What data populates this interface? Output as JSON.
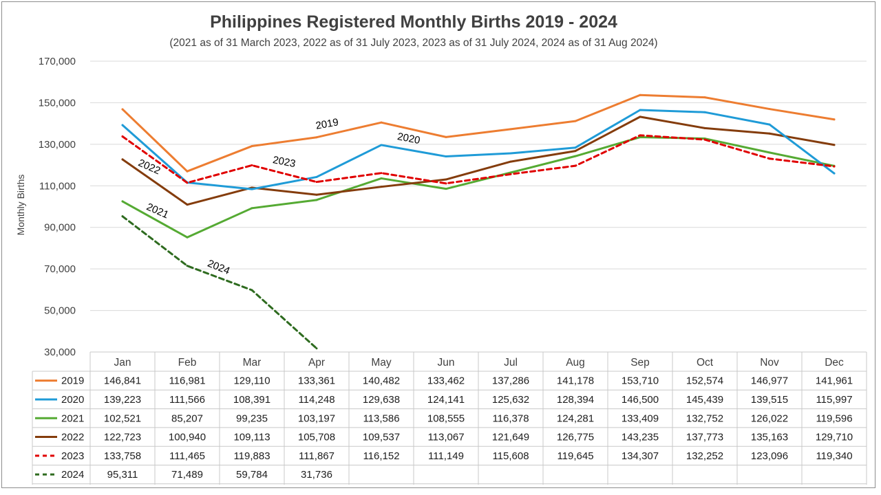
{
  "chart_data": {
    "type": "line",
    "title": "Philippines Registered Monthly Births 2019 - 2024",
    "subtitle": "(2021 as of 31 March 2023, 2022 as of 31 July 2023, 2023 as of 31 July 2024, 2024 as of 31 Aug 2024)",
    "xlabel": "",
    "ylabel": "Monthly Births",
    "ylim": [
      30000,
      170000
    ],
    "yticks": [
      30000,
      50000,
      70000,
      90000,
      110000,
      130000,
      150000,
      170000
    ],
    "ytick_labels": [
      "30,000",
      "50,000",
      "70,000",
      "90,000",
      "110,000",
      "130,000",
      "150,000",
      "170,000"
    ],
    "grid": true,
    "legend": "data-table",
    "categories": [
      "Jan",
      "Feb",
      "Mar",
      "Apr",
      "May",
      "Jun",
      "Jul",
      "Aug",
      "Sep",
      "Oct",
      "Nov",
      "Dec"
    ],
    "series": [
      {
        "name": "2019",
        "color": "#ED7D31",
        "dashed": false,
        "values": [
          146841,
          116981,
          129110,
          133361,
          140482,
          133462,
          137286,
          141178,
          153710,
          152574,
          146977,
          141961
        ],
        "labels": [
          "146,841",
          "116,981",
          "129,110",
          "133,361",
          "140,482",
          "133,462",
          "137,286",
          "141,178",
          "153,710",
          "152,574",
          "146,977",
          "141,961"
        ]
      },
      {
        "name": "2020",
        "color": "#1F9BD7",
        "dashed": false,
        "values": [
          139223,
          111566,
          108391,
          114248,
          129638,
          124141,
          125632,
          128394,
          146500,
          145439,
          139515,
          115997
        ],
        "labels": [
          "139,223",
          "111,566",
          "108,391",
          "114,248",
          "129,638",
          "124,141",
          "125,632",
          "128,394",
          "146,500",
          "145,439",
          "139,515",
          "115,997"
        ]
      },
      {
        "name": "2021",
        "color": "#55AA33",
        "dashed": false,
        "values": [
          102521,
          85207,
          99235,
          103197,
          113586,
          108555,
          116378,
          124281,
          133409,
          132752,
          126022,
          119596
        ],
        "labels": [
          "102,521",
          "85,207",
          "99,235",
          "103,197",
          "113,586",
          "108,555",
          "116,378",
          "124,281",
          "133,409",
          "132,752",
          "126,022",
          "119,596"
        ]
      },
      {
        "name": "2022",
        "color": "#843C0C",
        "dashed": false,
        "values": [
          122723,
          100940,
          109113,
          105708,
          109537,
          113067,
          121649,
          126775,
          143235,
          137773,
          135163,
          129710
        ],
        "labels": [
          "122,723",
          "100,940",
          "109,113",
          "105,708",
          "109,537",
          "113,067",
          "121,649",
          "126,775",
          "143,235",
          "137,773",
          "135,163",
          "129,710"
        ]
      },
      {
        "name": "2023",
        "color": "#E00000",
        "dashed": true,
        "values": [
          133758,
          111465,
          119883,
          111867,
          116152,
          111149,
          115608,
          119645,
          134307,
          132252,
          123096,
          119340
        ],
        "labels": [
          "133,758",
          "111,465",
          "119,883",
          "111,867",
          "116,152",
          "111,149",
          "115,608",
          "119,645",
          "134,307",
          "132,252",
          "123,096",
          "119,340"
        ]
      },
      {
        "name": "2024",
        "color": "#2E6B1F",
        "dashed": true,
        "values": [
          95311,
          71489,
          59784,
          31736,
          null,
          null,
          null,
          null,
          null,
          null,
          null,
          null
        ],
        "labels": [
          "95,311",
          "71,489",
          "59,784",
          "31,736",
          "",
          "",
          "",
          "",
          "",
          "",
          "",
          ""
        ]
      }
    ],
    "annotations": [
      {
        "text": "2019",
        "series": "2019"
      },
      {
        "text": "2020",
        "series": "2020"
      },
      {
        "text": "2021",
        "series": "2021"
      },
      {
        "text": "2022",
        "series": "2022"
      },
      {
        "text": "2023",
        "series": "2023"
      },
      {
        "text": "2024",
        "series": "2024"
      }
    ]
  }
}
